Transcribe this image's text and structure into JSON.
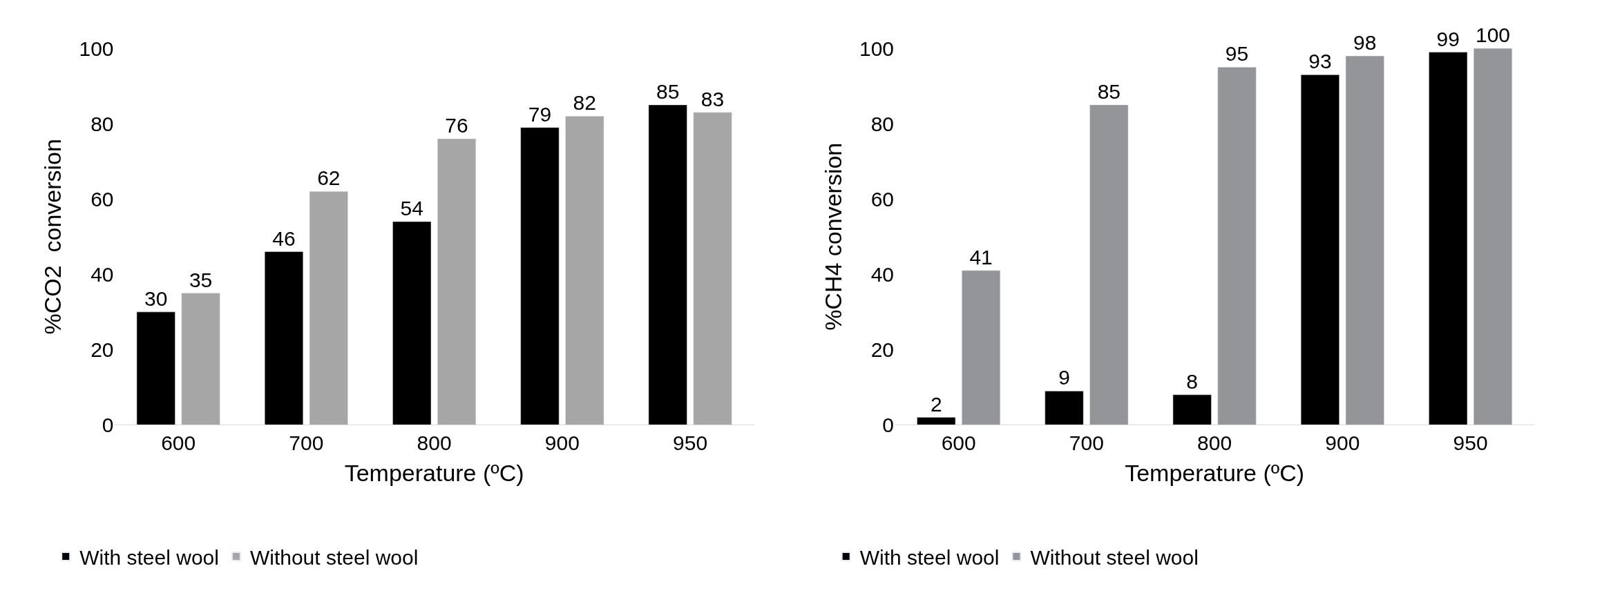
{
  "chart_data": [
    {
      "type": "bar",
      "ylabel": "%CO2  conversion",
      "xlabel": "Temperature (ºC)",
      "categories": [
        "600",
        "700",
        "800",
        "900",
        "950"
      ],
      "series": [
        {
          "name": "With steel wool",
          "color": "#000000",
          "values": [
            30,
            46,
            54,
            79,
            85
          ]
        },
        {
          "name": "Without steel wool",
          "color": "#a6a6a6",
          "values": [
            35,
            62,
            76,
            82,
            83
          ]
        }
      ],
      "ylim": [
        0,
        100
      ],
      "yticks": [
        0,
        20,
        40,
        60,
        80,
        100
      ],
      "data_labels": true,
      "legend": "bottom",
      "grid": false
    },
    {
      "type": "bar",
      "ylabel": "%CH4 conversion",
      "xlabel": "Temperature (ºC)",
      "categories": [
        "600",
        "700",
        "800",
        "900",
        "950"
      ],
      "series": [
        {
          "name": "With steel wool",
          "color": "#000000",
          "values": [
            2,
            9,
            8,
            93,
            99
          ]
        },
        {
          "name": "Without steel wool",
          "color": "#939598",
          "values": [
            41,
            85,
            95,
            98,
            100
          ]
        }
      ],
      "ylim": [
        0,
        100
      ],
      "yticks": [
        0,
        20,
        40,
        60,
        80,
        100
      ],
      "data_labels": true,
      "legend": "bottom",
      "grid": false
    }
  ]
}
